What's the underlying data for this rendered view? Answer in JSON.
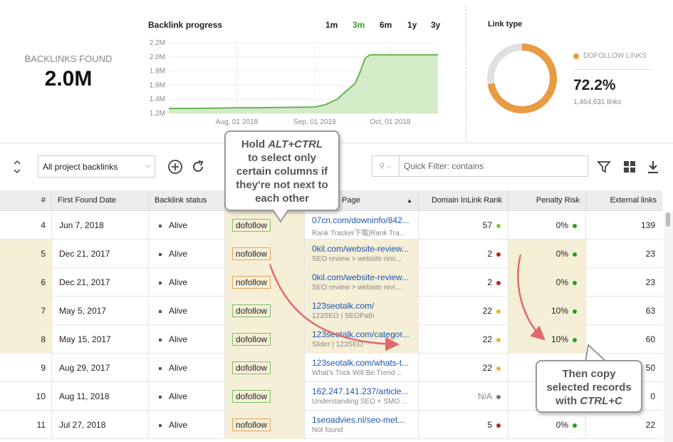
{
  "summary": {
    "label": "BACKLINKS FOUND",
    "value": "2.0M"
  },
  "chart": {
    "title": "Backlink progress",
    "ranges": [
      "1m",
      "3m",
      "6m",
      "1y",
      "3y"
    ],
    "active_range": "3m"
  },
  "chart_data": {
    "type": "area",
    "title": "Backlink progress",
    "y_ticks": [
      "2.2M",
      "2.0M",
      "1.8M",
      "1.6M",
      "1.4M",
      "1.2M"
    ],
    "x_ticks": [
      "Aug, 01 2018",
      "Sep, 01 2018",
      "Oct, 01 2018"
    ],
    "ylim": [
      1.2,
      2.2
    ],
    "x": [
      "2018-07-05",
      "2018-07-15",
      "2018-07-25",
      "2018-08-01",
      "2018-08-10",
      "2018-08-20",
      "2018-09-01",
      "2018-09-05",
      "2018-09-10",
      "2018-09-13",
      "2018-09-17",
      "2018-09-19",
      "2018-09-21",
      "2018-09-23",
      "2018-10-20"
    ],
    "values": [
      1.27,
      1.27,
      1.275,
      1.28,
      1.28,
      1.285,
      1.29,
      1.32,
      1.4,
      1.5,
      1.62,
      1.78,
      1.98,
      2.03,
      2.03
    ],
    "color": "#6ab452",
    "fill": "#d4ebc8"
  },
  "link_type": {
    "title": "Link type",
    "legend": "DOFOLLOW LINKS",
    "percent": "72.2%",
    "percent_value": 0.722,
    "count": "1,464,631 links",
    "color": "#e89b42",
    "rest_color": "#e0e0e0"
  },
  "toolbar": {
    "select": "All project backlinks",
    "filter_placeholder": "Quick Filter: contains"
  },
  "table": {
    "headers": [
      "#",
      "First Found Date",
      "Backlink status",
      "Page",
      "Domain InLink Rank",
      "Penalty Risk",
      "External links"
    ],
    "rows": [
      {
        "n": "4",
        "date": "Jun 7, 2018",
        "status": "Alive",
        "tag": "dofollow",
        "link": "07cn.com/downinfo/842...",
        "sub": "Rank Tracker下载|Rank Tra...",
        "rank": "57",
        "rank_color": "#8cc63f",
        "risk": "0%",
        "ext": "139",
        "hl": false
      },
      {
        "n": "5",
        "date": "Dec 21, 2017",
        "status": "Alive",
        "tag": "nofollow",
        "link": "0kil.com/website-review...",
        "sub": "SEO review > website revi...",
        "rank": "2",
        "rank_color": "#b5281f",
        "risk": "0%",
        "ext": "23",
        "hl": true
      },
      {
        "n": "6",
        "date": "Dec 21, 2017",
        "status": "Alive",
        "tag": "nofollow",
        "link": "0kil.com/website-review...",
        "sub": "SEO review > website revi...",
        "rank": "2",
        "rank_color": "#b5281f",
        "risk": "0%",
        "ext": "23",
        "hl": true
      },
      {
        "n": "7",
        "date": "May 5, 2017",
        "status": "Alive",
        "tag": "dofollow",
        "link": "123seotalk.com/",
        "sub": "123SEO | SEOPath",
        "rank": "22",
        "rank_color": "#e8b13a",
        "risk": "10%",
        "ext": "63",
        "hl": true
      },
      {
        "n": "8",
        "date": "May 15, 2017",
        "status": "Alive",
        "tag": "dofollow",
        "link": "123seotalk.com/categor...",
        "sub": "Slider | 123SEO",
        "rank": "22",
        "rank_color": "#e8b13a",
        "risk": "10%",
        "ext": "60",
        "hl": true
      },
      {
        "n": "9",
        "date": "Aug 29, 2017",
        "status": "Alive",
        "tag": "dofollow",
        "link": "123seotalk.com/whats-t...",
        "sub": "What's Trick Will Be Trend ...",
        "rank": "22",
        "rank_color": "#e8b13a",
        "risk": "",
        "ext": "50",
        "hl": false
      },
      {
        "n": "10",
        "date": "Aug 11, 2018",
        "status": "Alive",
        "tag": "dofollow",
        "link": "162.247.141.237/article...",
        "sub": "Understanding SEO + SMO ...",
        "rank": "N/A",
        "rank_color": "#777777",
        "risk": "",
        "ext": "0",
        "hl": false
      },
      {
        "n": "11",
        "date": "Jul 27, 2018",
        "status": "Alive",
        "tag": "nofollow",
        "link": "1seoadvies.nl/seo-met...",
        "sub": "Not found",
        "rank": "5",
        "rank_color": "#b5281f",
        "risk": "0%",
        "ext": "22",
        "hl": false
      }
    ]
  },
  "callouts": {
    "top": [
      "Hold",
      "ALT+CTRL",
      "to select only",
      "certain columns if",
      "they're not next to",
      "each other"
    ],
    "bottom": [
      "Then copy",
      "selected records",
      "with",
      "CTRL+C"
    ]
  }
}
